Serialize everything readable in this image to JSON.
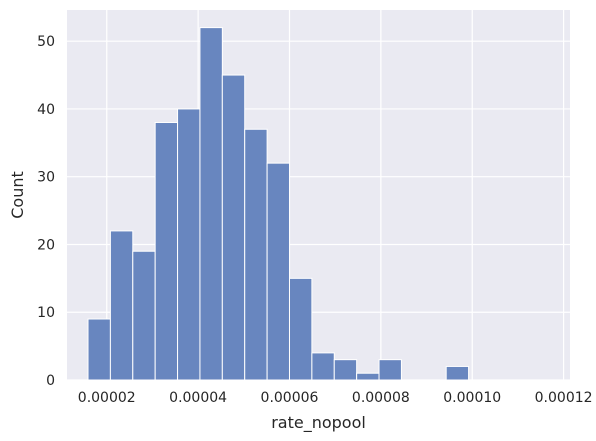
{
  "chart_data": {
    "type": "bar",
    "title": "",
    "xlabel": "rate_nopool",
    "ylabel": "Count",
    "bin_width": 4.9e-06,
    "bins": [
      {
        "x_start": 1.59e-05,
        "x_end": 2.08e-05,
        "count": 9
      },
      {
        "x_start": 2.08e-05,
        "x_end": 2.57e-05,
        "count": 22
      },
      {
        "x_start": 2.57e-05,
        "x_end": 3.06e-05,
        "count": 19
      },
      {
        "x_start": 3.06e-05,
        "x_end": 3.55e-05,
        "count": 38
      },
      {
        "x_start": 3.55e-05,
        "x_end": 4.04e-05,
        "count": 40
      },
      {
        "x_start": 4.04e-05,
        "x_end": 4.53e-05,
        "count": 52
      },
      {
        "x_start": 4.53e-05,
        "x_end": 5.02e-05,
        "count": 45
      },
      {
        "x_start": 5.02e-05,
        "x_end": 5.51e-05,
        "count": 37
      },
      {
        "x_start": 5.51e-05,
        "x_end": 6e-05,
        "count": 32
      },
      {
        "x_start": 6e-05,
        "x_end": 6.49e-05,
        "count": 15
      },
      {
        "x_start": 6.49e-05,
        "x_end": 6.98e-05,
        "count": 4
      },
      {
        "x_start": 6.98e-05,
        "x_end": 7.47e-05,
        "count": 3
      },
      {
        "x_start": 7.47e-05,
        "x_end": 7.96e-05,
        "count": 1
      },
      {
        "x_start": 7.96e-05,
        "x_end": 8.45e-05,
        "count": 3
      },
      {
        "x_start": 8.45e-05,
        "x_end": 8.94e-05,
        "count": 0
      },
      {
        "x_start": 8.94e-05,
        "x_end": 9.43e-05,
        "count": 0
      },
      {
        "x_start": 9.43e-05,
        "x_end": 9.92e-05,
        "count": 2
      }
    ],
    "x_ticks": [
      {
        "value": 2e-05,
        "label": "0.00002"
      },
      {
        "value": 4e-05,
        "label": "0.00004"
      },
      {
        "value": 6e-05,
        "label": "0.00006"
      },
      {
        "value": 8e-05,
        "label": "0.00008"
      },
      {
        "value": 0.0001,
        "label": "0.00010"
      },
      {
        "value": 0.00012,
        "label": "0.00012"
      }
    ],
    "y_ticks": [
      {
        "value": 0,
        "label": "0"
      },
      {
        "value": 10,
        "label": "10"
      },
      {
        "value": 20,
        "label": "20"
      },
      {
        "value": 30,
        "label": "30"
      },
      {
        "value": 40,
        "label": "40"
      },
      {
        "value": 50,
        "label": "50"
      }
    ],
    "xlim": [
      1.13e-05,
      0.0001214
    ],
    "ylim": [
      0,
      54.6
    ],
    "grid": true,
    "colors": {
      "bar_fill": "#6886bf",
      "bar_edge": "#ffffff",
      "plot_bg": "#eaeaf2",
      "grid": "#ffffff",
      "text": "#262626"
    }
  }
}
